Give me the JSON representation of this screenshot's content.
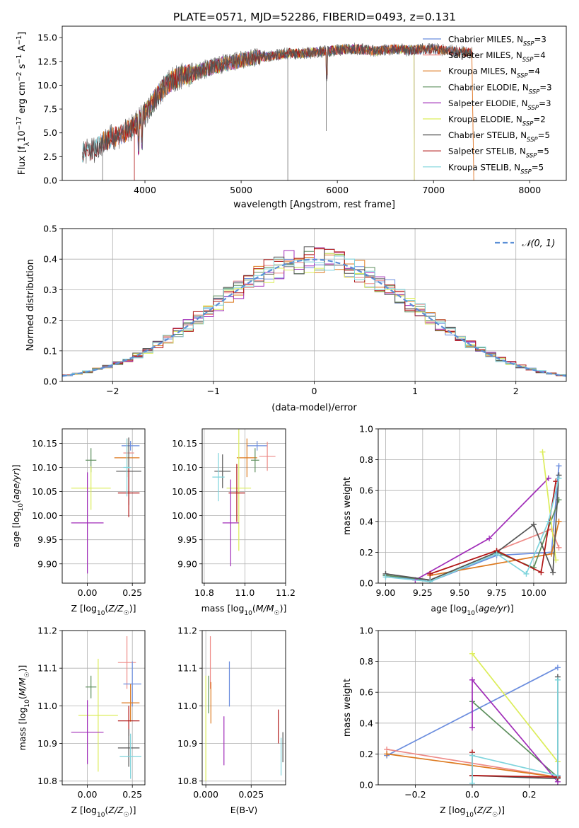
{
  "figure": {
    "title": "PLATE=0571, MJD=52286, FIBERID=0493, z=0.131"
  },
  "chart_data": [
    {
      "id": "spectrum",
      "type": "line",
      "xlabel": "wavelength [Angstrom, rest frame]",
      "ylabel": "Flux [f_λ 10⁻¹⁷ erg cm⁻² s⁻¹ Å⁻¹]",
      "xlim": [
        3140,
        8380
      ],
      "ylim": [
        0,
        16.2
      ],
      "xticks": [
        4000,
        5000,
        6000,
        7000,
        8000
      ],
      "yticks": [
        0.0,
        2.5,
        5.0,
        7.5,
        10.0,
        12.5,
        15.0
      ],
      "grid": false,
      "legend": "top-right",
      "continuum": {
        "x": [
          3350,
          3480,
          3550,
          3650,
          3750,
          3850,
          3900,
          4000,
          4100,
          4200,
          4300,
          4400,
          4500,
          4600,
          4700,
          4800,
          4900,
          5000,
          5100,
          5200,
          5300,
          5400,
          5500,
          5600,
          5700,
          5800,
          5900,
          6000,
          6100,
          6200,
          6300,
          6400,
          6500,
          6600,
          6700,
          6800,
          6900,
          7000,
          7100,
          7200,
          7300,
          7400
        ],
        "y": [
          3.0,
          3.3,
          4.0,
          4.5,
          4.8,
          5.4,
          5.8,
          7.0,
          8.5,
          9.8,
          10.6,
          11.0,
          11.2,
          11.6,
          11.9,
          12.2,
          12.4,
          12.6,
          12.8,
          13.0,
          13.0,
          13.2,
          13.4,
          13.3,
          13.4,
          13.5,
          13.6,
          13.7,
          13.8,
          13.8,
          13.7,
          13.6,
          13.7,
          13.8,
          13.7,
          13.7,
          13.8,
          13.8,
          13.7,
          13.6,
          13.5,
          13.4
        ]
      },
      "series": [
        {
          "name": "Chabrier MILES, N_SSP=3",
          "color": "#6b8dde",
          "x_range": [
            3540,
            7400
          ]
        },
        {
          "name": "Salpeter MILES, N_SSP=4",
          "color": "#ee8a86",
          "x_range": [
            3540,
            7400
          ]
        },
        {
          "name": "Kroupa MILES, N_SSP=4",
          "color": "#dd7a20",
          "x_range": [
            3540,
            7400
          ]
        },
        {
          "name": "Chabrier ELODIE, N_SSP=3",
          "color": "#5d8f5d",
          "x_range": [
            3900,
            6800
          ]
        },
        {
          "name": "Salpeter ELODIE, N_SSP=3",
          "color": "#a02cb8",
          "x_range": [
            3900,
            6800
          ]
        },
        {
          "name": "Kroupa ELODIE, N_SSP=2",
          "color": "#dced5a",
          "x_range": [
            3900,
            6800
          ]
        },
        {
          "name": "Chabrier STELIB, N_SSP=5",
          "color": "#555555",
          "x_range": [
            3350,
            7400
          ]
        },
        {
          "name": "Salpeter STELIB, N_SSP=5",
          "color": "#b01515",
          "x_range": [
            3350,
            7400
          ]
        },
        {
          "name": "Kroupa STELIB, N_SSP=5",
          "color": "#7ed4dc",
          "x_range": [
            3350,
            7400
          ]
        }
      ],
      "legend_labels": [
        {
          "base": "Chabrier MILES, N",
          "sub": "SSP",
          "tail": "=3"
        },
        {
          "base": "Salpeter MILES, N",
          "sub": "SSP",
          "tail": "=4"
        },
        {
          "base": "Kroupa MILES, N",
          "sub": "SSP",
          "tail": "=4"
        },
        {
          "base": "Chabrier ELODIE, N",
          "sub": "SSP",
          "tail": "=3"
        },
        {
          "base": "Salpeter ELODIE, N",
          "sub": "SSP",
          "tail": "=3"
        },
        {
          "base": "Kroupa ELODIE, N",
          "sub": "SSP",
          "tail": "=2"
        },
        {
          "base": "Chabrier STELIB, N",
          "sub": "SSP",
          "tail": "=5"
        },
        {
          "base": "Salpeter STELIB, N",
          "sub": "SSP",
          "tail": "=5"
        },
        {
          "base": "Kroupa STELIB, N",
          "sub": "SSP",
          "tail": "=5"
        }
      ]
    },
    {
      "id": "residuals",
      "type": "line",
      "xlabel": "(data-model)/error",
      "ylabel": "Normed distribution",
      "xlim": [
        -2.5,
        2.5
      ],
      "ylim": [
        0,
        0.5
      ],
      "xticks": [
        -2,
        -1,
        0,
        1,
        2
      ],
      "yticks": [
        0.0,
        0.1,
        0.2,
        0.3,
        0.4,
        0.5
      ],
      "grid": true,
      "legend": "top-right",
      "reference": {
        "name": "𝒩(0, 1)",
        "color": "#5b8fd6",
        "style": "dashed"
      },
      "bin_width": 0.1
    },
    {
      "id": "age_vs_Z",
      "type": "scatter",
      "xlabel": "Z [log₁₀(Z/Z☉)]",
      "ylabel": "age  [log₁₀(age/yr)]",
      "xlim": [
        -0.14,
        0.32
      ],
      "ylim": [
        9.86,
        10.18
      ],
      "xticks": [
        0.0,
        0.25
      ],
      "yticks": [
        9.9,
        9.95,
        10.0,
        10.05,
        10.1,
        10.15
      ],
      "grid": true,
      "points": [
        {
          "color": "#6b8dde",
          "x": 0.24,
          "y": 10.145,
          "dx": 0.05,
          "dy": 0.01
        },
        {
          "color": "#ee8a86",
          "x": 0.23,
          "y": 10.13,
          "dx": 0.03,
          "dy": 0.03
        },
        {
          "color": "#dd7a20",
          "x": 0.22,
          "y": 10.12,
          "dx": 0.07,
          "dy": 0.04
        },
        {
          "color": "#5d8f5d",
          "x": 0.02,
          "y": 10.115,
          "dx": 0.03,
          "dy": 0.025
        },
        {
          "color": "#555555",
          "x": 0.23,
          "y": 10.092,
          "dx": 0.07,
          "dy": 0.07
        },
        {
          "color": "#dced5a",
          "x": 0.02,
          "y": 10.057,
          "dx": 0.11,
          "dy": 0.045
        },
        {
          "color": "#b01515",
          "x": 0.23,
          "y": 10.047,
          "dx": 0.06,
          "dy": 0.05
        },
        {
          "color": "#7ed4dc",
          "x": 0.22,
          "y": 10.1,
          "dx": 0.02,
          "dy": 0.06
        },
        {
          "color": "#a02cb8",
          "x": 0.0,
          "y": 9.985,
          "dx": 0.09,
          "dy": 0.105
        }
      ]
    },
    {
      "id": "age_vs_mass",
      "type": "scatter",
      "xlabel": "mass [log₁₀(M/M☉)]",
      "ylabel": "",
      "xlim": [
        10.79,
        11.2
      ],
      "ylim": [
        9.86,
        10.18
      ],
      "xticks": [
        10.8,
        11.0,
        11.2
      ],
      "yticks": [
        9.9,
        9.95,
        10.0,
        10.05,
        10.1,
        10.15
      ],
      "grid": true,
      "points": [
        {
          "color": "#6b8dde",
          "x": 11.06,
          "y": 10.145,
          "dx": 0.05,
          "dy": 0.01
        },
        {
          "color": "#ee8a86",
          "x": 11.11,
          "y": 10.123,
          "dx": 0.04,
          "dy": 0.03
        },
        {
          "color": "#dd7a20",
          "x": 11.01,
          "y": 10.12,
          "dx": 0.05,
          "dy": 0.04
        },
        {
          "color": "#5d8f5d",
          "x": 11.05,
          "y": 10.115,
          "dx": 0.02,
          "dy": 0.025
        },
        {
          "color": "#555555",
          "x": 10.89,
          "y": 10.092,
          "dx": 0.04,
          "dy": 0.035
        },
        {
          "color": "#7ed4dc",
          "x": 10.87,
          "y": 10.08,
          "dx": 0.03,
          "dy": 0.05
        },
        {
          "color": "#dced5a",
          "x": 10.97,
          "y": 10.057,
          "dx": 0.06,
          "dy": 0.13
        },
        {
          "color": "#b01515",
          "x": 10.96,
          "y": 10.047,
          "dx": 0.04,
          "dy": 0.06
        },
        {
          "color": "#a02cb8",
          "x": 10.93,
          "y": 9.985,
          "dx": 0.04,
          "dy": 0.09
        }
      ]
    },
    {
      "id": "weight_vs_age",
      "type": "line",
      "xlabel": "age  [log₁₀(age/yr)]",
      "ylabel": "mass weight",
      "xlim": [
        8.95,
        10.22
      ],
      "ylim": [
        0,
        1.0
      ],
      "xticks": [
        9.0,
        9.25,
        9.5,
        9.75,
        10.0
      ],
      "yticks": [
        0.0,
        0.2,
        0.4,
        0.6,
        0.8,
        1.0
      ],
      "grid": true,
      "series": [
        {
          "color": "#6b8dde",
          "x": [
            9.0,
            9.3,
            9.75,
            10.12,
            10.17
          ],
          "y": [
            0.05,
            0.01,
            0.18,
            0.2,
            0.76
          ]
        },
        {
          "color": "#dd7a20",
          "x": [
            9.3,
            10.12,
            10.17
          ],
          "y": [
            0.05,
            0.19,
            0.4
          ]
        },
        {
          "color": "#ee8a86",
          "x": [
            9.3,
            9.75,
            10.12,
            10.17
          ],
          "y": [
            0.06,
            0.21,
            0.35,
            0.23
          ]
        },
        {
          "color": "#5d8f5d",
          "x": [
            9.0,
            9.3,
            9.75,
            10.0,
            10.17
          ],
          "y": [
            0.05,
            0.02,
            0.2,
            0.1,
            0.54
          ]
        },
        {
          "color": "#a02cb8",
          "x": [
            9.2,
            9.7,
            10.1
          ],
          "y": [
            0.02,
            0.29,
            0.68
          ]
        },
        {
          "color": "#dced5a",
          "x": [
            10.06,
            10.15
          ],
          "y": [
            0.85,
            0.15
          ]
        },
        {
          "color": "#555555",
          "x": [
            9.0,
            9.3,
            9.75,
            10.0,
            10.13,
            10.17
          ],
          "y": [
            0.06,
            0.02,
            0.2,
            0.38,
            0.07,
            0.7
          ]
        },
        {
          "color": "#b01515",
          "x": [
            9.3,
            9.75,
            10.05,
            10.15
          ],
          "y": [
            0.06,
            0.21,
            0.07,
            0.66
          ]
        },
        {
          "color": "#7ed4dc",
          "x": [
            9.0,
            9.3,
            9.75,
            9.95,
            10.1,
            10.17
          ],
          "y": [
            0.04,
            0.01,
            0.19,
            0.06,
            0.4,
            0.68
          ]
        }
      ]
    },
    {
      "id": "mass_vs_Z",
      "type": "scatter",
      "xlabel": "Z [log₁₀(Z/Z☉)]",
      "ylabel": "mass [log₁₀(M/M☉)]",
      "xlim": [
        -0.14,
        0.32
      ],
      "ylim": [
        10.79,
        11.2
      ],
      "xticks": [
        0.0,
        0.25
      ],
      "yticks": [
        10.8,
        10.9,
        11.0,
        11.1,
        11.2
      ],
      "grid": true,
      "points": [
        {
          "color": "#ee8a86",
          "x": 0.22,
          "y": 11.115,
          "dx": 0.05,
          "dy": 0.07
        },
        {
          "color": "#6b8dde",
          "x": 0.25,
          "y": 11.058,
          "dx": 0.05,
          "dy": 0.06
        },
        {
          "color": "#5d8f5d",
          "x": 0.02,
          "y": 11.05,
          "dx": 0.03,
          "dy": 0.03
        },
        {
          "color": "#dd7a20",
          "x": 0.24,
          "y": 11.008,
          "dx": 0.05,
          "dy": 0.05
        },
        {
          "color": "#dced5a",
          "x": 0.06,
          "y": 10.975,
          "dx": 0.11,
          "dy": 0.15
        },
        {
          "color": "#b01515",
          "x": 0.23,
          "y": 10.96,
          "dx": 0.06,
          "dy": 0.04
        },
        {
          "color": "#a02cb8",
          "x": 0.0,
          "y": 10.93,
          "dx": 0.09,
          "dy": 0.085
        },
        {
          "color": "#555555",
          "x": 0.23,
          "y": 10.888,
          "dx": 0.06,
          "dy": 0.05
        },
        {
          "color": "#7ed4dc",
          "x": 0.24,
          "y": 10.866,
          "dx": 0.06,
          "dy": 0.06
        }
      ]
    },
    {
      "id": "mass_vs_ebv",
      "type": "scatter",
      "xlabel": "E(B-V)",
      "ylabel": "",
      "xlim": [
        -0.002,
        0.044
      ],
      "ylim": [
        10.79,
        11.2
      ],
      "xticks": [
        0.0,
        0.025
      ],
      "yticks": [
        10.8,
        10.9,
        11.0,
        11.1,
        11.2
      ],
      "grid": true,
      "points": [
        {
          "color": "#ee8a86",
          "x": 0.0025,
          "y": 11.115,
          "dx": 0,
          "dy": 0.07
        },
        {
          "color": "#6b8dde",
          "x": 0.013,
          "y": 11.058,
          "dx": 0,
          "dy": 0.06
        },
        {
          "color": "#5d8f5d",
          "x": 0.0015,
          "y": 11.03,
          "dx": 0,
          "dy": 0.05
        },
        {
          "color": "#dd7a20",
          "x": 0.0028,
          "y": 11.008,
          "dx": 0,
          "dy": 0.055
        },
        {
          "color": "#dced5a",
          "x": 0.0,
          "y": 10.94,
          "dx": 0,
          "dy": 0.14
        },
        {
          "color": "#b01515",
          "x": 0.04,
          "y": 10.945,
          "dx": 0,
          "dy": 0.045
        },
        {
          "color": "#a02cb8",
          "x": 0.01,
          "y": 10.907,
          "dx": 0,
          "dy": 0.065
        },
        {
          "color": "#555555",
          "x": 0.0425,
          "y": 10.89,
          "dx": 0,
          "dy": 0.04
        },
        {
          "color": "#7ed4dc",
          "x": 0.0415,
          "y": 10.865,
          "dx": 0,
          "dy": 0.05
        }
      ]
    },
    {
      "id": "weight_vs_Z",
      "type": "line",
      "xlabel": "Z [log₁₀(Z/Z☉)]",
      "ylabel": "mass weight",
      "xlim": [
        -0.33,
        0.33
      ],
      "ylim": [
        0,
        1.0
      ],
      "xticks": [
        -0.2,
        0.0,
        0.2
      ],
      "yticks": [
        0.0,
        0.2,
        0.4,
        0.6,
        0.8,
        1.0
      ],
      "grid": true,
      "series": [
        {
          "color": "#6b8dde",
          "x": [
            -0.3,
            0.3
          ],
          "y": [
            0.19,
            0.76
          ]
        },
        {
          "color": "#ee8a86",
          "x": [
            -0.3,
            0.3
          ],
          "y": [
            0.23,
            0.05
          ]
        },
        {
          "color": "#dd7a20",
          "x": [
            -0.3,
            0.3
          ],
          "y": [
            0.2,
            0.05
          ]
        },
        {
          "color": "#5d8f5d",
          "x": [
            0.0,
            0.3
          ],
          "y": [
            0.54,
            0.05
          ]
        },
        {
          "color": "#a02cb8",
          "x": [
            0.0,
            0.0,
            0.3,
            0.3
          ],
          "y": [
            0.37,
            0.68,
            0.02,
            0.06
          ]
        },
        {
          "color": "#dced5a",
          "x": [
            0.0,
            0.3
          ],
          "y": [
            0.85,
            0.15
          ]
        },
        {
          "color": "#555555",
          "x": [
            0.0,
            0.3,
            0.3
          ],
          "y": [
            0.06,
            0.04,
            0.7
          ]
        },
        {
          "color": "#b01515",
          "x": [
            0.0,
            0.0,
            0.3
          ],
          "y": [
            0.21,
            0.06,
            0.05
          ]
        },
        {
          "color": "#7ed4dc",
          "x": [
            0.0,
            0.0,
            0.3,
            0.3
          ],
          "y": [
            0.01,
            0.19,
            0.06,
            0.68
          ]
        }
      ]
    }
  ]
}
